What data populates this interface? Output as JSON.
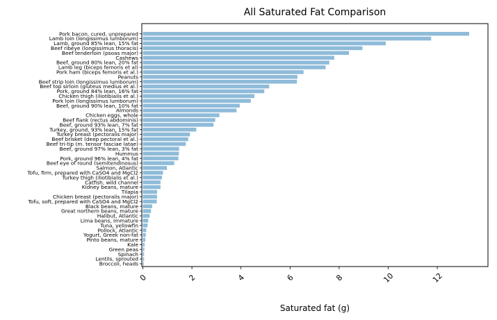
{
  "chart_data": {
    "type": "bar",
    "orientation": "horizontal",
    "title": "All Saturated Fat Comparison",
    "xlabel": "Saturated fat (g)",
    "ylabel": "",
    "xlim": [
      0,
      14
    ],
    "xticks": [
      0,
      2,
      4,
      6,
      8,
      10,
      12
    ],
    "tick_label_rotation": 45,
    "grid": false,
    "bar_color": "#8fbbd9",
    "categories": [
      "Pork bacon, cured, unprepared",
      "Lamb loin (longissimus lumborum)",
      "Lamb, ground 85% lean, 15% fat",
      "Beef ribeye (longissimus thoracis)",
      "Beef tenderloin (psoas major)",
      "Cashews",
      "Beef, ground 80% lean, 20% fat",
      "Lamb leg (biceps femoris et al)",
      "Pork ham (biceps femoris et al.)",
      "Peanuts",
      "Beef strip loin (longissimus lumborum)",
      "Beef top sirloin (gluteus medius et al.)",
      "Pork, ground 84% lean, 16% fat",
      "Chicken thigh (iliotibialis et al.)",
      "Pork loin (longissimus lumborum)",
      "Beef, ground 90% lean, 10% fat",
      "Almonds",
      "Chicken eggs, whole",
      "Beef flank (rectus abdominis)",
      "Beef, ground 93% lean, 7% fat",
      "Turkey, ground, 93% lean, 15% fat",
      "Turkey breast (pectoralis major)",
      "Beef brisket (deep pectoral et al.)",
      "Beef tri-tip (m. tensor fasciae latae)",
      "Beef, ground 97% lean, 3% fat",
      "Hummus",
      "Pork, ground 96% lean, 4% fat",
      "Beef eye of round (semitendinosus)",
      "Salmon, Atlantic",
      "Tofu, firm, prepared with CaSO4 and MgCl2",
      "Turkey thigh (iliotibialis et al.)",
      "Catfish, wild channel",
      "Kidney beans, mature",
      "Tilapia",
      "Chicken breast (pectoralis major)",
      "Tofu, soft, prepared with CaSO4 and MgCl2",
      "Black beans, mature",
      "Great northern beans, mature",
      "Halibut, Atlantic",
      "Lima beans, immature",
      "Tuna, yellowfin",
      "Pollock, Atlantic",
      "Yogurt, Greek non-fat",
      "Pinto beans, mature",
      "Kale",
      "Green peas",
      "Spinach",
      "Lentils, sprouted",
      "Broccoli, heads"
    ],
    "values": [
      13.3,
      11.75,
      9.9,
      8.95,
      8.4,
      7.8,
      7.6,
      7.45,
      6.55,
      6.3,
      6.28,
      5.15,
      4.95,
      4.55,
      4.4,
      3.95,
      3.82,
      3.12,
      2.95,
      2.88,
      2.18,
      1.92,
      1.85,
      1.75,
      1.48,
      1.47,
      1.45,
      1.28,
      0.98,
      0.82,
      0.78,
      0.72,
      0.72,
      0.58,
      0.58,
      0.57,
      0.38,
      0.33,
      0.28,
      0.22,
      0.19,
      0.14,
      0.12,
      0.1,
      0.07,
      0.06,
      0.05,
      0.05,
      0.04
    ]
  }
}
